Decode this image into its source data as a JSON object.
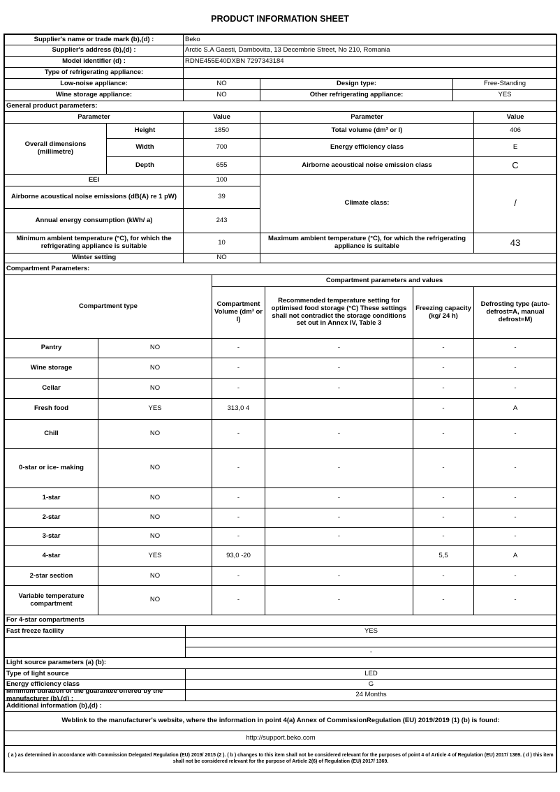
{
  "title": "PRODUCT INFORMATION SHEET",
  "supplier": {
    "name_label": "Supplier's name or trade mark (b),(d) :",
    "name_value": "Beko",
    "address_label": "Supplier's address (b),(d) :",
    "address_value": "Arctic S.A  Gaesti, Dambovita, 13 Decembrie Street, No 210, Romania",
    "model_label": "Model identifier (d) :",
    "model_value": "RDNE455E40DXBN 7297343184",
    "type_label": "Type of refrigerating appliance:",
    "low_noise_label": "Low-noise appliance:",
    "low_noise_value": "NO",
    "design_label": "Design type:",
    "design_value": "Free-Standing",
    "wine_label": "Wine storage appliance:",
    "wine_value": "NO",
    "other_label": "Other refrigerating appliance:",
    "other_value": "YES"
  },
  "general": {
    "heading": "General product parameters:",
    "param_header": "Parameter",
    "value_header": "Value",
    "overall_label": "Overall dimensions (millimetre)",
    "height_label": "Height",
    "height_value": "1850",
    "width_label": "Width",
    "width_value": "700",
    "depth_label": "Depth",
    "depth_value": "655",
    "total_volume_label": "Total volume (dm³ or l)",
    "total_volume_value": "406",
    "energy_class_label": "Energy efficiency class",
    "energy_class_value": "E",
    "noise_class_label": "Airborne acoustical noise emission class",
    "noise_class_value": "C",
    "eei_label": "EEI",
    "eei_value": "100",
    "noise_label": "Airborne acoustical noise emissions (dB(A) re 1 pW)",
    "noise_value": "39",
    "annual_label": "Annual energy consumption (kWh/ a)",
    "annual_value": "243",
    "climate_label": "Climate class:",
    "climate_value": "/",
    "min_temp_label": "Minimum ambient temperature (°C), for which the refrigerating appliance is suitable",
    "min_temp_value": "10",
    "max_temp_label": "Maximum ambient temperature (°C), for which the refrigerating appliance is suitable",
    "max_temp_value": "43",
    "winter_label": "Winter setting",
    "winter_value": "NO"
  },
  "compartments": {
    "heading": "Compartment Parameters:",
    "type_header": "Compartment type",
    "group_header": "Compartment parameters and values",
    "volume_header": "Compartment Volume (dm³ or l)",
    "temp_header": "Recommended temperature setting for optimised food storage (°C) These settings shall not contradict the storage conditions set out in Annex IV, Table 3",
    "freeze_header": "Freezing capacity (kg/ 24 h)",
    "defrost_header": "Defrosting type (auto-defrost=A, manual defrost=M)",
    "rows": [
      {
        "name": "Pantry",
        "present": "NO",
        "volume": "-",
        "temp": "-",
        "freeze": "-",
        "defrost": "-"
      },
      {
        "name": "Wine storage",
        "present": "NO",
        "volume": "-",
        "temp": "-",
        "freeze": "-",
        "defrost": "-"
      },
      {
        "name": "Cellar",
        "present": "NO",
        "volume": "-",
        "temp": "-",
        "freeze": "-",
        "defrost": "-"
      },
      {
        "name": "Fresh food",
        "present": "YES",
        "volume": "313,0 4",
        "temp": "",
        "freeze": "-",
        "defrost": "A"
      },
      {
        "name": "Chill",
        "present": "NO",
        "volume": "-",
        "temp": "-",
        "freeze": "-",
        "defrost": "-"
      },
      {
        "name": "0-star or ice- making",
        "present": "NO",
        "volume": "-",
        "temp": "-",
        "freeze": "-",
        "defrost": "-"
      },
      {
        "name": "1-star",
        "present": "NO",
        "volume": "-",
        "temp": "-",
        "freeze": "-",
        "defrost": "-"
      },
      {
        "name": "2-star",
        "present": "NO",
        "volume": "-",
        "temp": "-",
        "freeze": "-",
        "defrost": "-"
      },
      {
        "name": "3-star",
        "present": "NO",
        "volume": "-",
        "temp": "-",
        "freeze": "-",
        "defrost": "-"
      },
      {
        "name": "4-star",
        "present": "YES",
        "volume": "93,0 -20",
        "temp": "",
        "freeze": "5,5",
        "defrost": "A"
      },
      {
        "name": "2-star section",
        "present": "NO",
        "volume": "-",
        "temp": "-",
        "freeze": "-",
        "defrost": "-"
      },
      {
        "name": "Variable temperature compartment",
        "present": "NO",
        "volume": "-",
        "temp": "-",
        "freeze": "-",
        "defrost": "-"
      }
    ]
  },
  "four_star": {
    "heading": "For 4-star compartments",
    "fast_freeze_label": "Fast freeze facility",
    "fast_freeze_value": "YES",
    "blank_value": "-"
  },
  "light": {
    "heading": "Light source parameters (a) (b):",
    "type_label": "Type of light source",
    "type_value": "LED",
    "class_label": "Energy efficiency class",
    "class_value": "G"
  },
  "guarantee_label": "Minimum duration of the guarantee offered by the manufacturer (b),(d) :",
  "guarantee_value": "24 Months",
  "additional_label": "Additional information (b),(d) :",
  "weblink_label": "Weblink to the manufacturer's website, where the information in point 4(a) Annex of CommissionRegulation (EU) 2019/2019 (1) (b) is found:",
  "weblink_value": "http://support.beko.com",
  "footnote": "( a ) as determined in accordance with Commission Delegated Regulation (EU) 2019/ 2015 (2 ). ( b ) changes to this item shall not be considered relevant for the purposes of point 4 of Article 4 of Regulation (EU) 2017/ 1369. ( d ) this item shall not be considered relevant for the purpose of Article 2(6) of Regulation (EU) 2017/ 1369."
}
